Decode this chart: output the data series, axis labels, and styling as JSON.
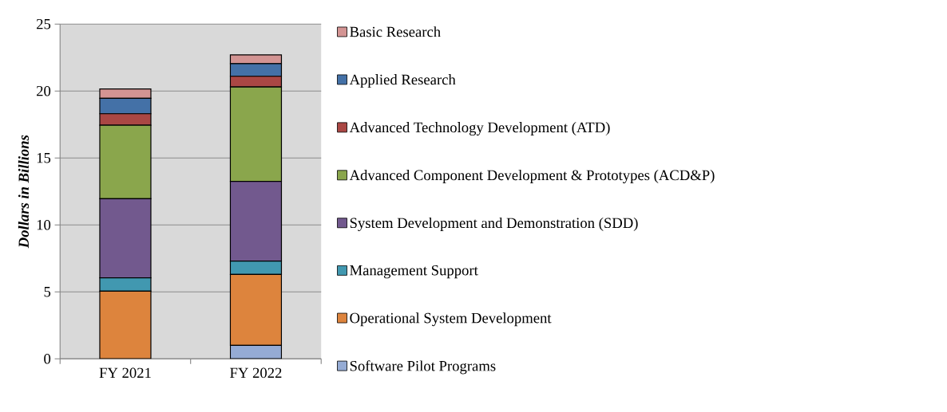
{
  "chart_data": {
    "type": "bar",
    "stacked": true,
    "ylabel": "Dollars in Billions",
    "categories": [
      "FY 2021",
      "FY 2022"
    ],
    "ylim": [
      0,
      25
    ],
    "yticks": [
      0,
      5,
      10,
      15,
      20,
      25
    ],
    "grid": "y",
    "legend": "right",
    "series": [
      {
        "name": "Software Pilot Programs",
        "color": "#95abd4",
        "values": [
          0,
          1.0
        ]
      },
      {
        "name": "Operational System Development",
        "color": "#dd843d",
        "values": [
          5.05,
          5.3
        ]
      },
      {
        "name": "Management Support",
        "color": "#4198b0",
        "values": [
          1.0,
          1.0
        ]
      },
      {
        "name": "System Development and Demonstration (SDD)",
        "color": "#72598e",
        "values": [
          5.9,
          5.95
        ]
      },
      {
        "name": "Advanced Component Development & Prototypes (ACD&P)",
        "color": "#8aa64c",
        "values": [
          5.5,
          7.05
        ]
      },
      {
        "name": "Advanced Technology Development (ATD)",
        "color": "#aa4744",
        "values": [
          0.85,
          0.8
        ]
      },
      {
        "name": "Applied Research",
        "color": "#4471a7",
        "values": [
          1.15,
          0.95
        ]
      },
      {
        "name": "Basic Research",
        "color": "#d39493",
        "values": [
          0.7,
          0.65
        ]
      }
    ]
  }
}
